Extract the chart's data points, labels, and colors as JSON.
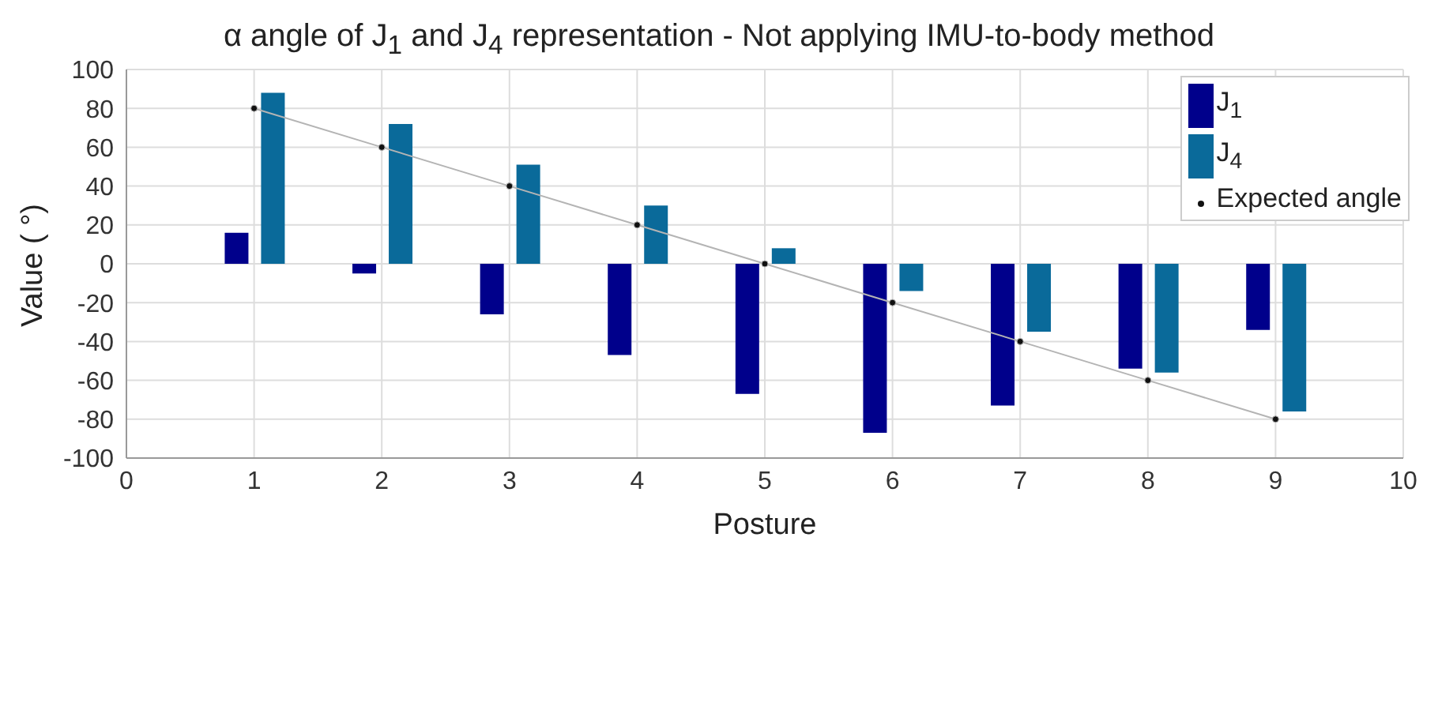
{
  "chart_data": {
    "type": "bar",
    "title": "α angle of J$_{1}$ and J$_{4}$ representation - Not applying IMU-to-body method",
    "xlabel": "Posture",
    "ylabel": "Value ( °)",
    "x": [
      1,
      2,
      3,
      4,
      5,
      6,
      7,
      8,
      9
    ],
    "series": [
      {
        "name": "J$_{1}$",
        "color": "#00008b",
        "values": [
          16,
          -5,
          -26,
          -47,
          -67,
          -87,
          -73,
          -54,
          -34
        ]
      },
      {
        "name": "J$_{4}$",
        "color": "#0a6a9a",
        "values": [
          88,
          72,
          51,
          30,
          8,
          -14,
          -35,
          -56,
          -76
        ]
      },
      {
        "name": "Expected angle",
        "type": "line",
        "color": "#b4b4b4",
        "marker": "circle",
        "values": [
          80,
          60,
          40,
          20,
          0,
          -20,
          -40,
          -60,
          -80
        ]
      }
    ],
    "xlim": [
      0,
      10
    ],
    "xticks": [
      0,
      1,
      2,
      3,
      4,
      5,
      6,
      7,
      8,
      9,
      10
    ],
    "ylim": [
      -100,
      100
    ],
    "yticks": [
      -100,
      -80,
      -60,
      -40,
      -20,
      0,
      20,
      40,
      60,
      80,
      100
    ],
    "grid": true,
    "legend": "top right"
  }
}
